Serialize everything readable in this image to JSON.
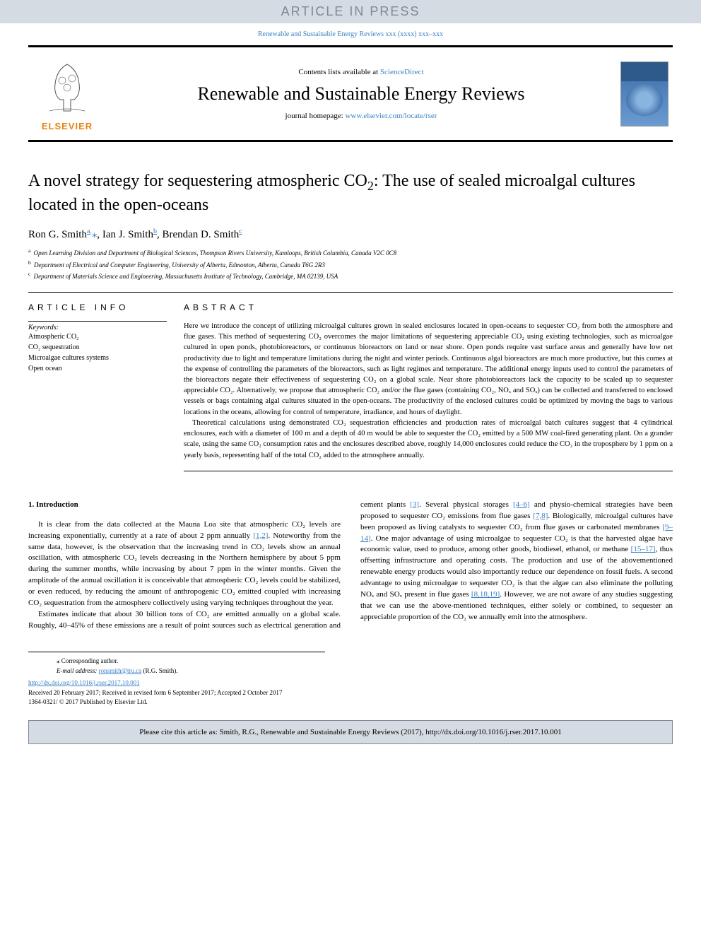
{
  "banner": {
    "text": "ARTICLE IN PRESS"
  },
  "citation_line": "Renewable and Sustainable Energy Reviews xxx (xxxx) xxx–xxx",
  "header": {
    "contents_prefix": "Contents lists available at ",
    "contents_link": "ScienceDirect",
    "journal_title": "Renewable and Sustainable Energy Reviews",
    "homepage_prefix": "journal homepage: ",
    "homepage_link": "www.elsevier.com/locate/rser",
    "elsevier_label": "ELSEVIER"
  },
  "article": {
    "title_html": "A novel strategy for sequestering atmospheric CO₂: The use of sealed microalgal cultures located in the open-oceans",
    "authors_html": "Ron G. Smith<sup>a,</sup><span class='corr'>⁎</span>, Ian J. Smith<sup>b</sup>, Brendan D. Smith<sup>c</sup>",
    "affiliations": [
      {
        "sup": "a",
        "text": "Open Learning Division and Department of Biological Sciences, Thompson Rivers University, Kamloops, British Columbia, Canada V2C 0C8"
      },
      {
        "sup": "b",
        "text": "Department of Electrical and Computer Engineering, University of Alberta, Edmonton, Alberta, Canada T6G 2R3"
      },
      {
        "sup": "c",
        "text": "Department of Materials Science and Engineering, Massachusetts Institute of Technology, Cambridge, MA 02139, USA"
      }
    ]
  },
  "article_info": {
    "heading": "ARTICLE INFO",
    "keywords_label": "Keywords:",
    "keywords": [
      "Atmospheric CO₂",
      "CO₂ sequestration",
      "Microalgae cultures systems",
      "Open ocean"
    ]
  },
  "abstract": {
    "heading": "ABSTRACT",
    "paragraphs": [
      "Here we introduce the concept of utilizing microalgal cultures grown in sealed enclosures located in open-oceans to sequester CO₂ from both the atmosphere and flue gases. This method of sequestering CO₂ overcomes the major limitations of sequestering appreciable CO₂ using existing technologies, such as microalgae cultured in open ponds, photobioreactors, or continuous bioreactors on land or near shore. Open ponds require vast surface areas and generally have low net productivity due to light and temperature limitations during the night and winter periods. Continuous algal bioreactors are much more productive, but this comes at the expense of controlling the parameters of the bioreactors, such as light regimes and temperature. The additional energy inputs used to control the parameters of the bioreactors negate their effectiveness of sequestering CO₂ on a global scale. Near shore photobioreactors lack the capacity to be scaled up to sequester appreciable CO₂. Alternatively, we propose that atmospheric CO₂ and/or the flue gases (containing CO₂, NOₓ and SOₓ) can be collected and transferred to enclosed vessels or bags containing algal cultures situated in the open-oceans. The productivity of the enclosed cultures could be optimized by moving the bags to various locations in the oceans, allowing for control of temperature, irradiance, and hours of daylight.",
      "Theoretical calculations using demonstrated CO₂ sequestration efficiencies and production rates of microalgal batch cultures suggest that 4 cylindrical enclosures, each with a diameter of 100 m and a depth of 40 m would be able to sequester the CO₂ emitted by a 500 MW coal-fired generating plant. On a grander scale, using the same CO₂ consumption rates and the enclosures described above, roughly 14,000 enclosures could reduce the CO₂ in the troposphere by 1 ppm on a yearly basis, representing half of the total CO₂ added to the atmosphere annually."
    ]
  },
  "introduction": {
    "heading": "1. Introduction",
    "col1_p1": "It is clear from the data collected at the Mauna Loa site that atmospheric CO₂ levels are increasing exponentially, currently at a rate of about 2 ppm annually ",
    "col1_p1_ref": "[1,2]",
    "col1_p1_cont": ". Noteworthy from the same data, however, is the observation that the increasing trend in CO₂ levels show an annual oscillation, with atmospheric CO₂ levels decreasing in the Northern hemisphere by about 5 ppm during the summer months, while increasing by about 7 ppm in the winter months. Given the amplitude of the annual oscillation it is conceivable that atmospheric CO₂ levels could be stabilized, or even reduced, by reducing the amount of anthropogenic CO₂ emitted coupled with increasing CO₂ sequestration from the atmosphere collectively using varying techniques throughout the year.",
    "col1_p2": "Estimates indicate that about 30 billion tons of CO₂ are emitted annually on a global scale. Roughly, 40–45% of these emissions are a",
    "col2_p1_a": "result of point sources such as electrical generation and cement plants ",
    "ref3": "[3]",
    "col2_p1_b": ". Several physical storages ",
    "ref46": "[4–6]",
    "col2_p1_c": " and physio-chemical strategies have been proposed to sequester CO₂ emissions from flue gases ",
    "ref78": "[7,8]",
    "col2_p1_d": ". Biologically, microalgal cultures have been proposed as living catalysts to sequester CO₂ from flue gases or carbonated membranes ",
    "ref914": "[9–14]",
    "col2_p1_e": ". One major advantage of using microalgae to sequester CO₂ is that the harvested algae have economic value, used to produce, among other goods, biodiesel, ethanol, or methane ",
    "ref1517": "[15–17]",
    "col2_p1_f": ", thus offsetting infrastructure and operating costs. The production and use of the abovementioned renewable energy products would also importantly reduce our dependence on fossil fuels. A second advantage to using microalgae to sequester CO₂ is that the algae can also eliminate the polluting NOₓ and SOₓ present in flue gases ",
    "ref81819": "[8,18,19]",
    "col2_p1_g": ". However, we are not aware of any studies suggesting that we can use the above-mentioned techniques, either solely or combined, to sequester an appreciable proportion of the CO₂ we annually emit into the atmosphere."
  },
  "footer": {
    "corr_label": "⁎ Corresponding author.",
    "email_label": "E-mail address: ",
    "email": "ronsmith@tru.ca",
    "email_name": " (R.G. Smith).",
    "doi": "http://dx.doi.org/10.1016/j.rser.2017.10.001",
    "received": "Received 20 February 2017; Received in revised form 6 September 2017; Accepted 2 October 2017",
    "issn": "1364-0321/ © 2017 Published by Elsevier Ltd."
  },
  "cite_box": "Please cite this article as: Smith, R.G., Renewable and Sustainable Energy Reviews (2017), http://dx.doi.org/10.1016/j.rser.2017.10.001",
  "colors": {
    "banner_bg": "#d5dbe3",
    "banner_text": "#808896",
    "link": "#3a7fc4",
    "elsevier_orange": "#e8840c"
  }
}
